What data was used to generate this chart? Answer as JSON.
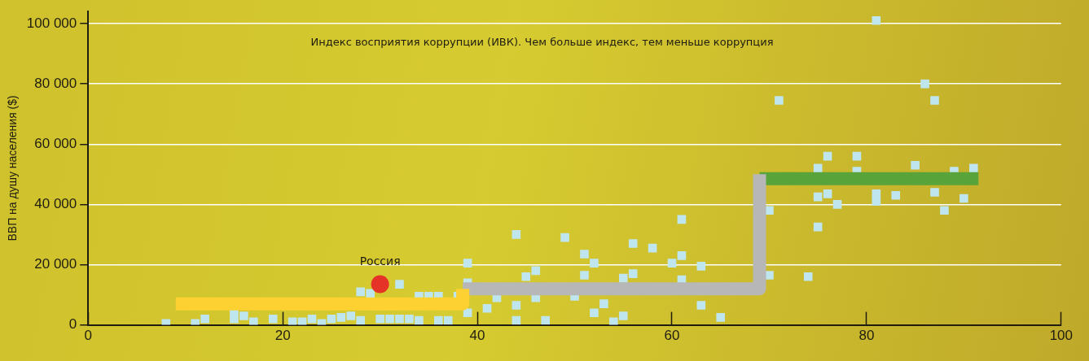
{
  "chart_data": {
    "type": "scatter",
    "ylabel": "ВВП на душу населения ($)",
    "annotations": [
      "Индекс восприятия коррупции (ИВК). Чем больше индекс, тем меньше коррупция"
    ],
    "xlim": [
      0,
      100
    ],
    "xticks": [
      0,
      20,
      40,
      60,
      80,
      100
    ],
    "ylim": [
      0,
      104000
    ],
    "yticks": [
      0,
      {
        "value": 20000,
        "label": "20 000"
      },
      {
        "value": 40000,
        "label": "40 000"
      },
      {
        "value": 60000,
        "label": "60 000"
      },
      {
        "value": 80000,
        "label": "80 000"
      },
      {
        "value": 100000,
        "label": "100 000"
      }
    ],
    "grid": "y",
    "legend": false,
    "series": [
      {
        "marker": "square",
        "color": "#bfe6ef",
        "x": [
          8,
          11,
          12,
          15,
          15,
          16,
          17,
          19,
          21,
          22,
          23,
          24,
          25,
          26,
          27,
          28,
          28,
          29,
          30,
          31,
          32,
          32,
          33,
          34,
          34,
          35,
          36,
          36,
          37,
          38,
          39,
          39,
          39,
          41,
          42,
          44,
          44,
          44,
          45,
          46,
          46,
          47,
          49,
          50,
          51,
          51,
          52,
          52,
          53,
          54,
          55,
          55,
          56,
          56,
          58,
          60,
          61,
          61,
          61,
          63,
          63,
          65,
          70,
          70,
          71,
          74,
          75,
          75,
          75,
          76,
          76,
          77,
          79,
          79,
          81,
          81,
          81,
          83,
          85,
          86,
          87,
          87,
          88,
          89,
          90,
          91
        ],
        "values": [
          500,
          500,
          2000,
          2000,
          4500,
          3000,
          1000,
          2000,
          1000,
          1000,
          2000,
          500,
          2000,
          2500,
          3000,
          11000,
          1500,
          10500,
          2000,
          2000,
          13500,
          2000,
          2000,
          9500,
          1500,
          9500,
          9500,
          1500,
          1500,
          9500,
          20500,
          14000,
          4000,
          5500,
          9000,
          30000,
          6500,
          1500,
          16000,
          18000,
          9000,
          1500,
          29000,
          9500,
          23500,
          16500,
          20500,
          4000,
          7000,
          1000,
          15500,
          3000,
          27000,
          17000,
          25500,
          20500,
          35000,
          23000,
          15000,
          19500,
          6500,
          2500,
          16500,
          38000,
          74500,
          16000,
          52000,
          42500,
          32500,
          56000,
          43500,
          40000,
          56000,
          51000,
          101000,
          43500,
          41000,
          43000,
          53000,
          80000,
          74500,
          44000,
          38000,
          51000,
          42000,
          52000
        ]
      },
      {
        "type": "line",
        "marker": "none",
        "color": "#fdd131",
        "x": [
          9,
          38.5,
          38.5
        ],
        "values": [
          7000,
          7000,
          12000
        ]
      },
      {
        "type": "line",
        "marker": "none",
        "color": "#b7b7b7",
        "x": [
          38.5,
          69,
          69
        ],
        "values": [
          12000,
          12000,
          50000
        ]
      },
      {
        "type": "line",
        "marker": "none",
        "color": "#59a33b",
        "x": [
          69,
          91.5
        ],
        "values": [
          48500,
          48500
        ]
      },
      {
        "marker": "circle",
        "name": "Россия",
        "color": "#e53427",
        "x": [
          30
        ],
        "values": [
          13500
        ]
      }
    ]
  }
}
